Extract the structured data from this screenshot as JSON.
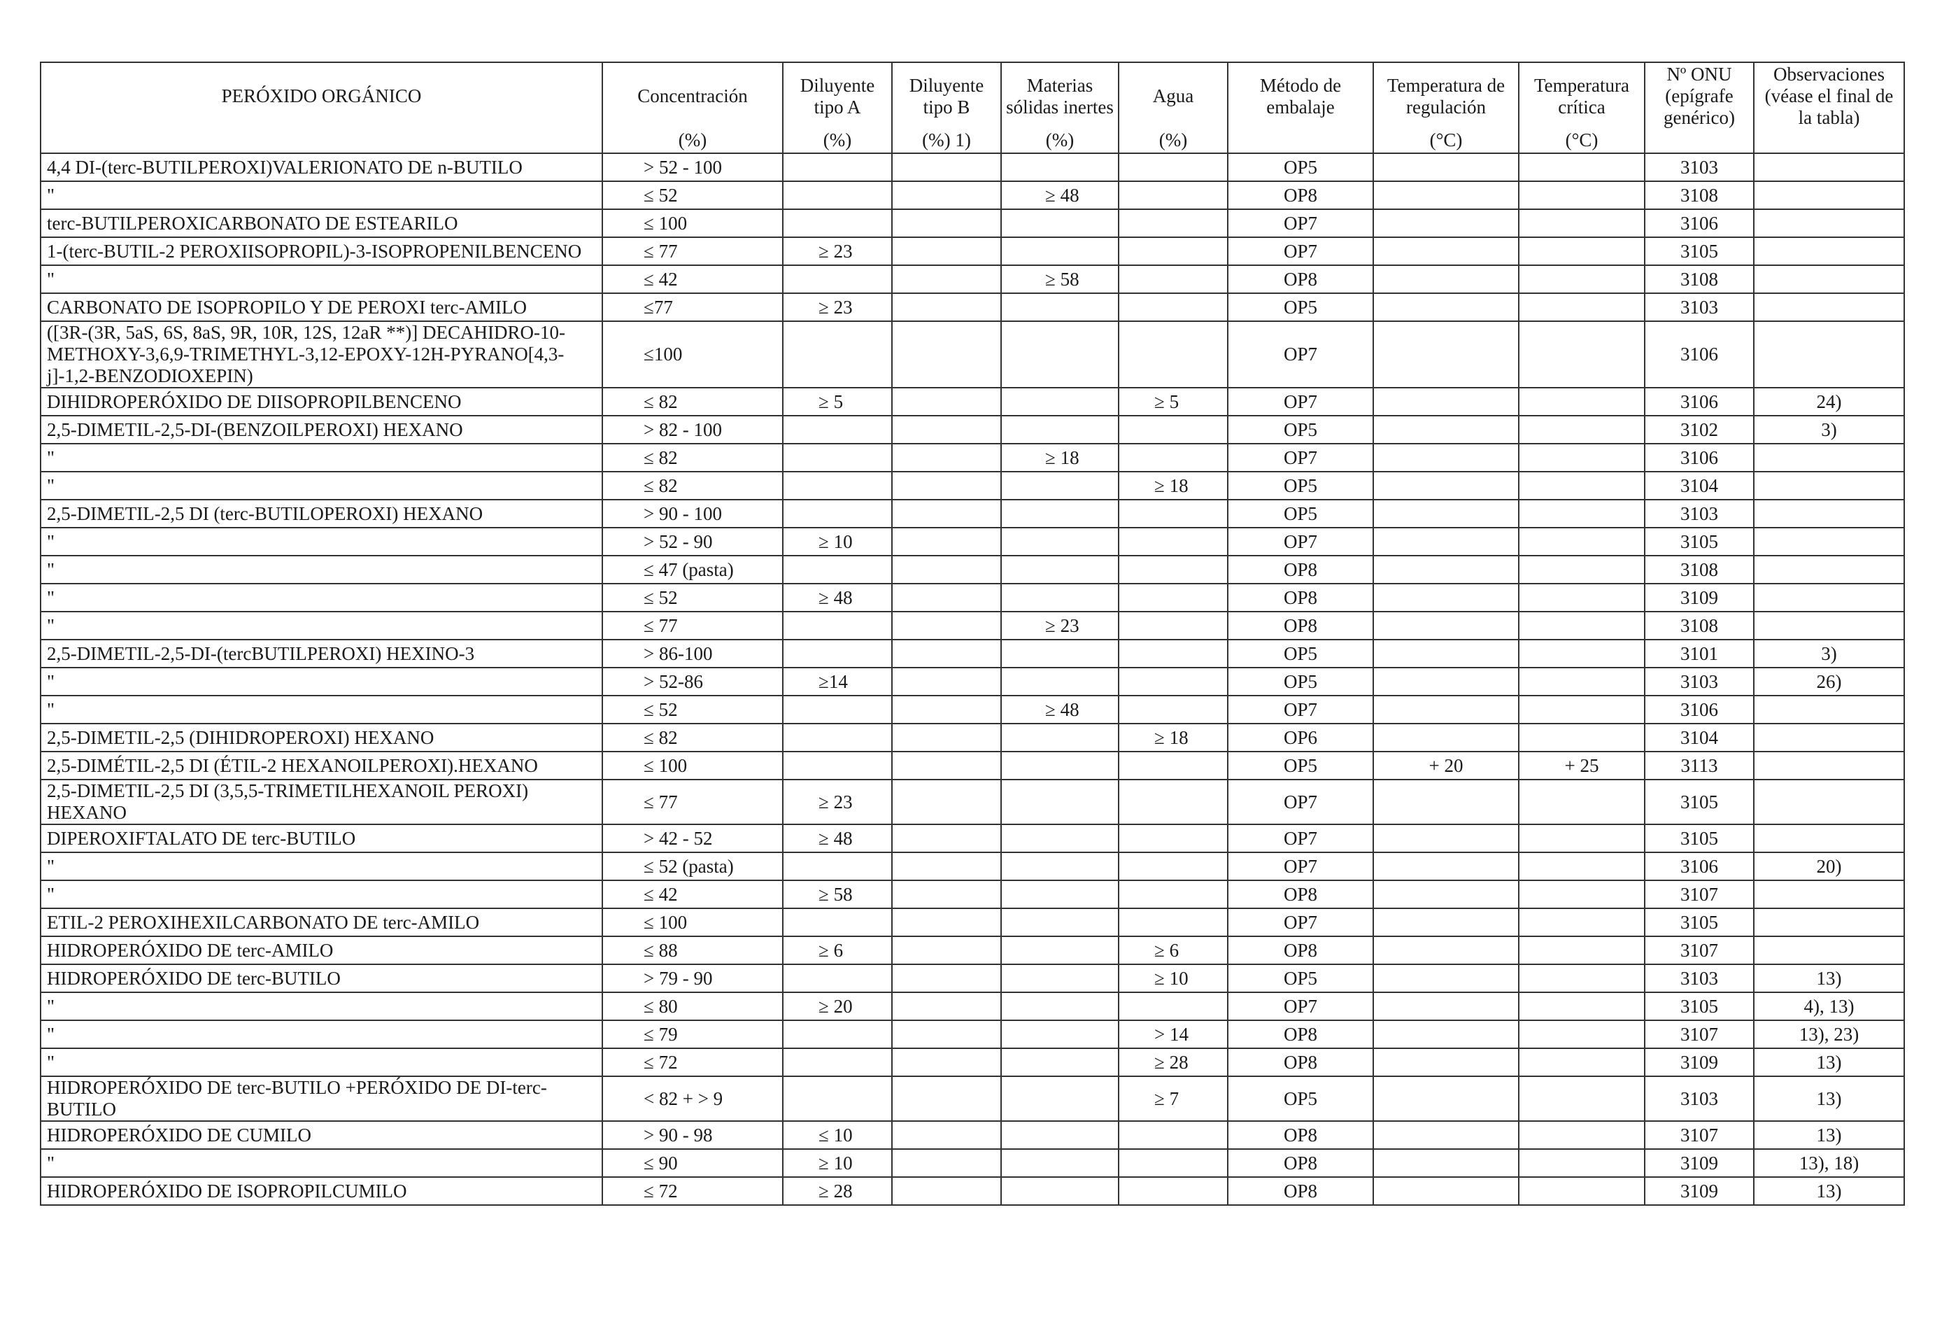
{
  "table": {
    "headers": [
      {
        "label": "PERÓXIDO ORGÁNICO",
        "unit": ""
      },
      {
        "label": "Concentración",
        "unit": "(%)"
      },
      {
        "label": "Diluyente tipo A",
        "unit": "(%)"
      },
      {
        "label": "Diluyente tipo B",
        "unit": "(%) 1)"
      },
      {
        "label": "Materias sólidas inertes",
        "unit": "(%)"
      },
      {
        "label": "Agua",
        "unit": "(%)"
      },
      {
        "label": "Método de embalaje",
        "unit": ""
      },
      {
        "label": "Temperatura de regulación",
        "unit": "(°C)"
      },
      {
        "label": "Temperatura crítica",
        "unit": "(°C)"
      },
      {
        "label": "Nº ONU (epígrafe genérico)",
        "unit": ""
      },
      {
        "label": "Observaciones (véase el final de la tabla)",
        "unit": ""
      }
    ],
    "rows": [
      [
        "4,4 DI-(terc-BUTILPEROXI)VALERIONATO DE n-BUTILO",
        "> 52 - 100",
        "",
        "",
        "",
        "",
        "OP5",
        "",
        "",
        "3103",
        ""
      ],
      [
        "\"",
        "≤ 52",
        "",
        "",
        "≥ 48",
        "",
        "OP8",
        "",
        "",
        "3108",
        ""
      ],
      [
        "terc-BUTILPEROXICARBONATO DE ESTEARILO",
        "≤ 100",
        "",
        "",
        "",
        "",
        "OP7",
        "",
        "",
        "3106",
        ""
      ],
      [
        "1-(terc-BUTIL-2 PEROXIISOPROPIL)-3-ISOPROPENILBENCENO",
        "≤ 77",
        "≥ 23",
        "",
        "",
        "",
        "OP7",
        "",
        "",
        "3105",
        ""
      ],
      [
        "\"",
        "≤ 42",
        "",
        "",
        "≥ 58",
        "",
        "OP8",
        "",
        "",
        "3108",
        ""
      ],
      [
        "CARBONATO DE ISOPROPILO Y DE PEROXI terc-AMILO",
        "≤77",
        "≥ 23",
        "",
        "",
        "",
        "OP5",
        "",
        "",
        "3103",
        ""
      ],
      [
        "([3R-(3R, 5aS, 6S, 8aS, 9R, 10R, 12S, 12aR **)] DECAHIDRO-10-METHOXY-3,6,9-TRIMETHYL-3,12-EPOXY-12H-PYRANO[4,3-j]-1,2-BENZODIOXEPIN)",
        "≤100",
        "",
        "",
        "",
        "",
        "OP7",
        "",
        "",
        "3106",
        ""
      ],
      [
        "DIHIDROPERÓXIDO DE DIISOPROPILBENCENO",
        "≤ 82",
        "≥ 5",
        "",
        "",
        "≥ 5",
        "OP7",
        "",
        "",
        "3106",
        "24)"
      ],
      [
        "2,5-DIMETIL-2,5-DI-(BENZOILPEROXI) HEXANO",
        "> 82 - 100",
        "",
        "",
        "",
        "",
        "OP5",
        "",
        "",
        "3102",
        "3)"
      ],
      [
        "\"",
        "≤ 82",
        "",
        "",
        "≥ 18",
        "",
        "OP7",
        "",
        "",
        "3106",
        ""
      ],
      [
        "\"",
        "≤ 82",
        "",
        "",
        "",
        "≥ 18",
        "OP5",
        "",
        "",
        "3104",
        ""
      ],
      [
        "2,5-DIMETIL-2,5 DI (terc-BUTILOPEROXI) HEXANO",
        "> 90 - 100",
        "",
        "",
        "",
        "",
        "OP5",
        "",
        "",
        "3103",
        ""
      ],
      [
        "\"",
        "> 52 - 90",
        "≥ 10",
        "",
        "",
        "",
        "OP7",
        "",
        "",
        "3105",
        ""
      ],
      [
        "\"",
        "≤ 47 (pasta)",
        "",
        "",
        "",
        "",
        "OP8",
        "",
        "",
        "3108",
        ""
      ],
      [
        "\"",
        "≤ 52",
        "≥ 48",
        "",
        "",
        "",
        "OP8",
        "",
        "",
        "3109",
        ""
      ],
      [
        "\"",
        "≤ 77",
        "",
        "",
        "≥ 23",
        "",
        "OP8",
        "",
        "",
        "3108",
        ""
      ],
      [
        "2,5-DIMETIL-2,5-DI-(tercBUTILPEROXI) HEXINO-3",
        "> 86-100",
        "",
        "",
        "",
        "",
        "OP5",
        "",
        "",
        "3101",
        "3)"
      ],
      [
        "\"",
        "> 52-86",
        "≥14",
        "",
        "",
        "",
        "OP5",
        "",
        "",
        "3103",
        "26)"
      ],
      [
        "\"",
        "≤ 52",
        "",
        "",
        "≥ 48",
        "",
        "OP7",
        "",
        "",
        "3106",
        ""
      ],
      [
        "2,5-DIMETIL-2,5 (DIHIDROPEROXI) HEXANO",
        "≤ 82",
        "",
        "",
        "",
        "≥ 18",
        "OP6",
        "",
        "",
        "3104",
        ""
      ],
      [
        "2,5-DIMÉTIL-2,5 DI (ÉTIL-2 HEXANOILPEROXI).HEXANO",
        "≤ 100",
        "",
        "",
        "",
        "",
        "OP5",
        "+ 20",
        "+ 25",
        "3113",
        ""
      ],
      [
        "2,5-DIMETIL-2,5 DI (3,5,5-TRIMETILHEXANOIL PEROXI) HEXANO",
        "≤ 77",
        "≥ 23",
        "",
        "",
        "",
        "OP7",
        "",
        "",
        "3105",
        ""
      ],
      [
        "DIPEROXIFTALATO DE terc-BUTILO",
        "> 42 - 52",
        "≥ 48",
        "",
        "",
        "",
        "OP7",
        "",
        "",
        "3105",
        ""
      ],
      [
        "\"",
        "≤ 52 (pasta)",
        "",
        "",
        "",
        "",
        "OP7",
        "",
        "",
        "3106",
        "20)"
      ],
      [
        "\"",
        "≤ 42",
        "≥ 58",
        "",
        "",
        "",
        "OP8",
        "",
        "",
        "3107",
        ""
      ],
      [
        "ETIL-2 PEROXIHEXILCARBONATO DE terc-AMILO",
        "≤ 100",
        "",
        "",
        "",
        "",
        "OP7",
        "",
        "",
        "3105",
        ""
      ],
      [
        "HIDROPERÓXIDO DE terc-AMILO",
        "≤ 88",
        "≥ 6",
        "",
        "",
        "≥ 6",
        "OP8",
        "",
        "",
        "3107",
        ""
      ],
      [
        "HIDROPERÓXIDO DE terc-BUTILO",
        "> 79 - 90",
        "",
        "",
        "",
        "≥ 10",
        "OP5",
        "",
        "",
        "3103",
        "13)"
      ],
      [
        "\"",
        "≤ 80",
        "≥ 20",
        "",
        "",
        "",
        "OP7",
        "",
        "",
        "3105",
        "4), 13)"
      ],
      [
        "\"",
        "≤ 79",
        "",
        "",
        "",
        ">  14",
        "OP8",
        "",
        "",
        "3107",
        "13), 23)"
      ],
      [
        "\"",
        "≤ 72",
        "",
        "",
        "",
        "≥ 28",
        "OP8",
        "",
        "",
        "3109",
        "13)"
      ],
      [
        "HIDROPERÓXIDO DE terc-BUTILO +PERÓXIDO DE DI-terc-BUTILO",
        "< 82 + > 9",
        "",
        "",
        "",
        "≥ 7",
        "OP5",
        "",
        "",
        "3103",
        "13)"
      ],
      [
        "HIDROPERÓXIDO DE CUMILO",
        "> 90 - 98",
        "≤ 10",
        "",
        "",
        "",
        "OP8",
        "",
        "",
        "3107",
        "13)"
      ],
      [
        "\"",
        "≤ 90",
        "≥ 10",
        "",
        "",
        "",
        "OP8",
        "",
        "",
        "3109",
        "13), 18)"
      ],
      [
        "HIDROPERÓXIDO DE ISOPROPILCUMILO",
        "≤ 72",
        "≥ 28",
        "",
        "",
        "",
        "OP8",
        "",
        "",
        "3109",
        "13)"
      ]
    ]
  }
}
